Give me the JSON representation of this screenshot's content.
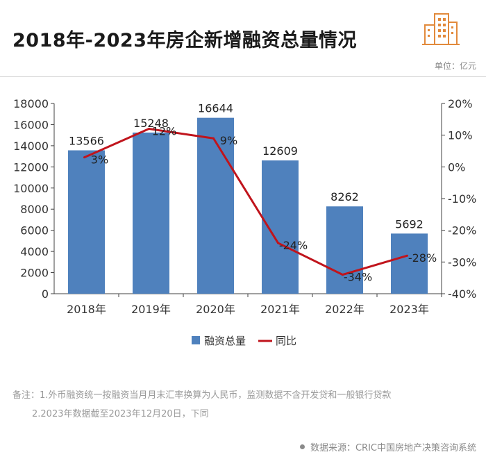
{
  "header": {
    "title": "2018年-2023年房企新增融资总量情况",
    "unit": "单位：亿元",
    "logo_icon": "city-buildings-icon"
  },
  "chart_data": {
    "type": "bar",
    "categories": [
      "2018年",
      "2019年",
      "2020年",
      "2021年",
      "2022年",
      "2023年"
    ],
    "series": [
      {
        "name": "融资总量",
        "type": "bar",
        "axis": "left",
        "values": [
          13566,
          15248,
          16644,
          12609,
          8262,
          5692
        ],
        "labels": [
          "13566",
          "15248",
          "16644",
          "12609",
          "8262",
          "5692"
        ],
        "color": "#4f81bd"
      },
      {
        "name": "同比",
        "type": "line",
        "axis": "right",
        "values": [
          3,
          12,
          9,
          -24,
          -34,
          -28
        ],
        "labels": [
          "3%",
          "12%",
          "9%",
          "-24%",
          "-34%",
          "-28%"
        ],
        "color": "#c0141c"
      }
    ],
    "y_left": {
      "min": 0,
      "max": 18000,
      "ticks": [
        "0",
        "2000",
        "4000",
        "6000",
        "8000",
        "10000",
        "12000",
        "14000",
        "16000",
        "18000"
      ]
    },
    "y_right": {
      "min": -40,
      "max": 20,
      "ticks": [
        "-40%",
        "-30%",
        "-20%",
        "-10%",
        "0%",
        "10%",
        "20%"
      ]
    },
    "grid": false,
    "legend_position": "bottom"
  },
  "notes": {
    "line1": "备注：1.外币融资统一按融资当月月末汇率换算为人民币，监测数据不含开发贷和一般银行贷款",
    "line2": "2.2023年数据截至2023年12月20日，下同"
  },
  "source": "数据来源：CRIC中国房地产决策咨询系统"
}
